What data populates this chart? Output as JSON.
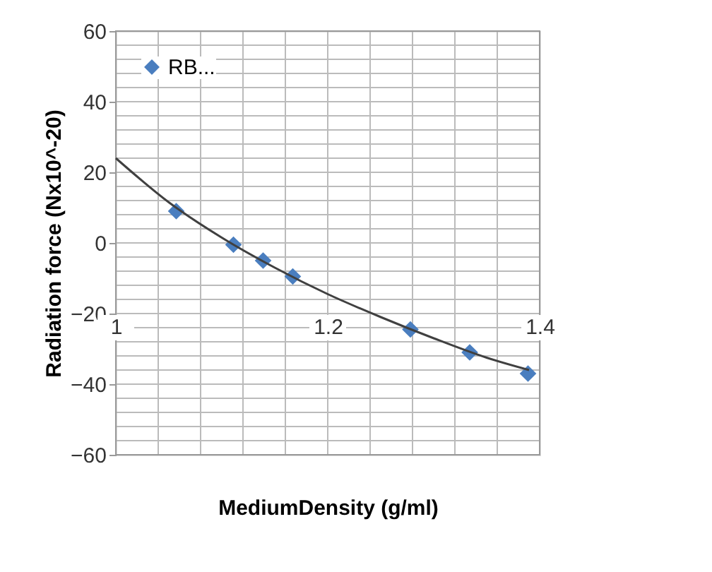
{
  "chart_data": {
    "type": "scatter",
    "xlabel": "MediumDensity (g/ml)",
    "ylabel": "Radiation force (Nx10^-20)",
    "xlim": [
      1,
      1.4
    ],
    "xticks": [
      1,
      1.2,
      1.4
    ],
    "ylim": [
      -60,
      60
    ],
    "yticks": [
      -60,
      -40,
      -20,
      0,
      20,
      40,
      60
    ],
    "grid": true,
    "legend": "top left",
    "marker": "diamond",
    "series": [
      {
        "name": "RB...",
        "color": "#4a7ebf",
        "x": [
          1.057,
          1.111,
          1.139,
          1.167,
          1.278,
          1.334,
          1.389
        ],
        "values": [
          9,
          -0.5,
          -5,
          -9.5,
          -24.5,
          -31,
          -37
        ]
      },
      {
        "type": "line",
        "color": "#404040",
        "line_style": "solid",
        "marker": "none",
        "x": [
          1,
          1.05,
          1.1,
          1.15,
          1.2,
          1.25,
          1.3,
          1.35,
          1.39
        ],
        "values": [
          24,
          11.5,
          1.5,
          -7,
          -14.5,
          -21,
          -27,
          -32.5,
          -36
        ]
      }
    ]
  }
}
